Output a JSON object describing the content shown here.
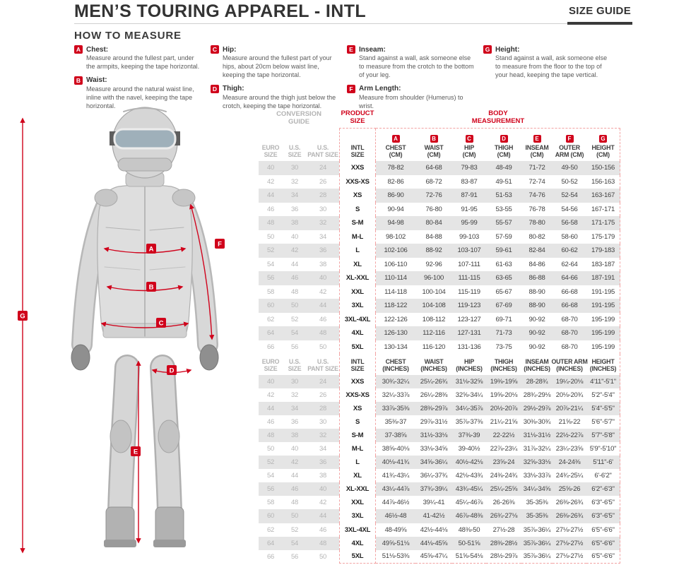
{
  "header": {
    "title": "MEN’S TOURING APPAREL - INTL",
    "badge": "SIZE GUIDE"
  },
  "how_to_measure": {
    "heading": "HOW TO MEASURE",
    "items": [
      {
        "letter": "A",
        "name": "Chest:",
        "text": "Measure around the fullest part, under the armpits, keeping the tape horizontal."
      },
      {
        "letter": "B",
        "name": "Waist:",
        "text": "Measure around the natural waist line, inline with the navel, keeping the tape horizontal."
      },
      {
        "letter": "C",
        "name": "Hip:",
        "text": "Measure around the fullest part of your hips, about 20cm below waist line, keeping the tape horizontal."
      },
      {
        "letter": "D",
        "name": "Thigh:",
        "text": "Measure around the thigh just below the crotch, keeping the tape horizontal."
      },
      {
        "letter": "E",
        "name": "Inseam:",
        "text": "Stand against a wall, ask someone else to measure from the crotch to the bottom of your leg."
      },
      {
        "letter": "F",
        "name": "Arm Length:",
        "text": "Measure from shoulder (Humerus) to wrist."
      },
      {
        "letter": "G",
        "name": "Height:",
        "text": "Stand against a wall, ask someone else to measure from the floor to the top of your head, keeping the tape vertical."
      }
    ]
  },
  "figure": {
    "labels": [
      "A",
      "B",
      "C",
      "D",
      "E",
      "F",
      "G"
    ]
  },
  "table": {
    "group_headers": {
      "conversion": "CONVERSION GUIDE",
      "product": "PRODUCT SIZE",
      "body": "BODY MEASUREMENT"
    },
    "conversion_columns": [
      [
        "EURO",
        "SIZE"
      ],
      [
        "U.S.",
        "SIZE"
      ],
      [
        "U.S.",
        "PANT SIZE"
      ]
    ],
    "intl_column": [
      "INTL",
      "SIZE"
    ],
    "measure_letters": [
      "A",
      "B",
      "C",
      "D",
      "E",
      "F",
      "G"
    ],
    "cm_columns": [
      [
        "CHEST",
        "(CM)"
      ],
      [
        "WAIST",
        "(CM)"
      ],
      [
        "HIP",
        "(CM)"
      ],
      [
        "THIGH",
        "(CM)"
      ],
      [
        "INSEAM",
        "(CM)"
      ],
      [
        "OUTER",
        "ARM (CM)"
      ],
      [
        "HEIGHT",
        "(CM)"
      ]
    ],
    "inch_columns": [
      [
        "CHEST",
        "(INCHES)"
      ],
      [
        "WAIST",
        "(INCHES)"
      ],
      [
        "HIP",
        "(INCHES)"
      ],
      [
        "THIGH",
        "(INCHES)"
      ],
      [
        "INSEAM",
        "(INCHES)"
      ],
      [
        "OUTER ARM",
        "(INCHES)"
      ],
      [
        "HEIGHT",
        "(INCHES)"
      ]
    ],
    "cm_rows": [
      [
        "40",
        "30",
        "24",
        "XXS",
        "78-82",
        "64-68",
        "79-83",
        "48-49",
        "71-72",
        "49-50",
        "150-156"
      ],
      [
        "42",
        "32",
        "26",
        "XXS-XS",
        "82-86",
        "68-72",
        "83-87",
        "49-51",
        "72-74",
        "50-52",
        "156-163"
      ],
      [
        "44",
        "34",
        "28",
        "XS",
        "86-90",
        "72-76",
        "87-91",
        "51-53",
        "74-76",
        "52-54",
        "163-167"
      ],
      [
        "46",
        "36",
        "30",
        "S",
        "90-94",
        "76-80",
        "91-95",
        "53-55",
        "76-78",
        "54-56",
        "167-171"
      ],
      [
        "48",
        "38",
        "32",
        "S-M",
        "94-98",
        "80-84",
        "95-99",
        "55-57",
        "78-80",
        "56-58",
        "171-175"
      ],
      [
        "50",
        "40",
        "34",
        "M-L",
        "98-102",
        "84-88",
        "99-103",
        "57-59",
        "80-82",
        "58-60",
        "175-179"
      ],
      [
        "52",
        "42",
        "36",
        "L",
        "102-106",
        "88-92",
        "103-107",
        "59-61",
        "82-84",
        "60-62",
        "179-183"
      ],
      [
        "54",
        "44",
        "38",
        "XL",
        "106-110",
        "92-96",
        "107-111",
        "61-63",
        "84-86",
        "62-64",
        "183-187"
      ],
      [
        "56",
        "46",
        "40",
        "XL-XXL",
        "110-114",
        "96-100",
        "111-115",
        "63-65",
        "86-88",
        "64-66",
        "187-191"
      ],
      [
        "58",
        "48",
        "42",
        "XXL",
        "114-118",
        "100-104",
        "115-119",
        "65-67",
        "88-90",
        "66-68",
        "191-195"
      ],
      [
        "60",
        "50",
        "44",
        "3XL",
        "118-122",
        "104-108",
        "119-123",
        "67-69",
        "88-90",
        "66-68",
        "191-195"
      ],
      [
        "62",
        "52",
        "46",
        "3XL-4XL",
        "122-126",
        "108-112",
        "123-127",
        "69-71",
        "90-92",
        "68-70",
        "195-199"
      ],
      [
        "64",
        "54",
        "48",
        "4XL",
        "126-130",
        "112-116",
        "127-131",
        "71-73",
        "90-92",
        "68-70",
        "195-199"
      ],
      [
        "66",
        "56",
        "50",
        "5XL",
        "130-134",
        "116-120",
        "131-136",
        "73-75",
        "90-92",
        "68-70",
        "195-199"
      ]
    ],
    "inch_rows": [
      [
        "40",
        "30",
        "24",
        "XXS",
        "30¾-32¼",
        "25¼-26¾",
        "31⅛-32⅝",
        "19⅜-19⅝",
        "28-28¾",
        "19¼-20⅛",
        "4'11\"-5'1\""
      ],
      [
        "42",
        "32",
        "26",
        "XXS-XS",
        "32¼-33⅞",
        "26¼-28⅜",
        "32⅝-34¼",
        "19⅝-20⅛",
        "28¾-29⅛",
        "20⅛-20¾",
        "5'2\"-5'4\""
      ],
      [
        "44",
        "34",
        "28",
        "XS",
        "33⅞-35⅜",
        "28⅜-29⅞",
        "34¼-35⅞",
        "20½-20⅞",
        "29½-29⅞",
        "20⅞-21¼",
        "5'4\"-5'5\""
      ],
      [
        "46",
        "36",
        "30",
        "S",
        "35⅜-37",
        "29⅞-31½",
        "35⅞-37⅜",
        "21¼-21⅝",
        "30⅜-30¾",
        "21⅝-22",
        "5'6\"-5'7\""
      ],
      [
        "48",
        "38",
        "32",
        "S-M",
        "37-38⅝",
        "31½-33⅛",
        "37⅜-39",
        "22-22½",
        "31⅛-31½",
        "22½-22⅞",
        "5'7\"-5'8\""
      ],
      [
        "50",
        "40",
        "34",
        "M-L",
        "38⅝-40⅛",
        "33⅛-34⅝",
        "39-40½",
        "22⅞-23¼",
        "31⅞-32¼",
        "23¼-23⅝",
        "5'9\"-5'10\""
      ],
      [
        "52",
        "42",
        "36",
        "L",
        "40⅛-41¾",
        "34⅝-36¼",
        "40½-42⅛",
        "23⅝-24",
        "32⅝-33⅛",
        "24-24⅜",
        "5'11\"-6'"
      ],
      [
        "54",
        "44",
        "38",
        "XL",
        "41¾-43¼",
        "36¼-37¾",
        "42⅛-43¾",
        "24⅜-24¾",
        "33⅛-33⅞",
        "24¾-25¼",
        "6'-6'2\""
      ],
      [
        "56",
        "46",
        "40",
        "XL-XXL",
        "43¼-44⅞",
        "37¾-39¼",
        "43¾-45¼",
        "25¼-25⅝",
        "34¼-34⅝",
        "25⅝-26",
        "6'2\"-6'3\""
      ],
      [
        "58",
        "48",
        "42",
        "XXL",
        "44⅞-46½",
        "39¼-41",
        "45¼-46⅞",
        "26-26⅜",
        "35-35⅜",
        "26⅜-26¾",
        "6'3\"-6'5\""
      ],
      [
        "60",
        "50",
        "44",
        "3XL",
        "46½-48",
        "41-42½",
        "46⅞-48⅜",
        "26¾-27⅛",
        "35-35⅜",
        "26⅜-26¾",
        "6'3\"-6'5\""
      ],
      [
        "62",
        "52",
        "46",
        "3XL-4XL",
        "48-49⅝",
        "42½-44⅛",
        "48⅜-50",
        "27½-28",
        "35⅞-36¼",
        "27⅛-27½",
        "6'5\"-6'6\""
      ],
      [
        "64",
        "54",
        "48",
        "4XL",
        "49⅝-51⅛",
        "44⅛-45⅝",
        "50-51⅝",
        "28⅜-28½",
        "35⅞-36¼",
        "27⅛-27½",
        "6'5\"-6'6\""
      ],
      [
        "66",
        "56",
        "50",
        "5XL",
        "51⅛-53⅜",
        "45⅝-47¼",
        "51⅝-54⅛",
        "28½-29⅞",
        "35⅞-36¼",
        "27⅛-27½",
        "6'5\"-6'6\""
      ]
    ]
  },
  "colors": {
    "accent_red": "#d0021b",
    "row_stripe": "#e5e5e5",
    "conversion_gray": "#b5b5b5",
    "dashed_guide": "#f2a2a2",
    "heading_dark": "#333333"
  }
}
